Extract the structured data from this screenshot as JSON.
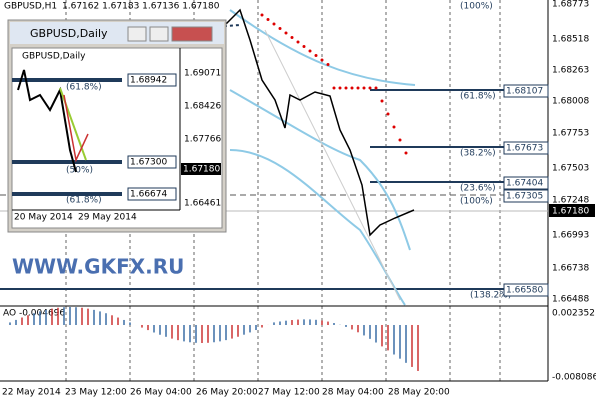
{
  "header": {
    "symbol": "GBPUSD,H1",
    "quote": "1.67162 1.67183 1.67136 1.67180"
  },
  "price_axis": [
    "1.68773",
    "1.68518",
    "1.68263",
    "1.68008",
    "1.67753",
    "1.67503",
    "1.67248",
    "1.66993",
    "1.66738",
    "1.66488"
  ],
  "current_price": "1.67180",
  "fib_levels": [
    {
      "percent": "(100%)",
      "price": null
    },
    {
      "percent": "(61.8%)",
      "price": "1.68107"
    },
    {
      "percent": "(38.2%)",
      "price": "1.67673"
    },
    {
      "percent": "(23.6%)",
      "price": "1.67404"
    },
    {
      "percent": "(100%)",
      "price": "1.67305"
    },
    {
      "percent": "(138.2%)",
      "price": "1.66580"
    }
  ],
  "indicator": {
    "name": "AO -0.004696",
    "axis": [
      "0.002352",
      "-0.008086"
    ]
  },
  "time_axis": [
    "22 May 2014",
    "23 May 12:00",
    "26 May 04:00",
    "26 May 20:00",
    "27 May 12:00",
    "28 May 04:00",
    "28 May 20:00"
  ],
  "watermark": "WWW.GKFX.RU",
  "inset": {
    "title": "GBPUSD,Daily",
    "header": "GBPUSD,Daily",
    "price_axis": [
      "1.69071",
      "1.68426",
      "1.67766",
      "1.66461"
    ],
    "current_price": "1.67180",
    "levels": [
      {
        "percent": "(61.8%)",
        "price": "1.68942"
      },
      {
        "percent": "(50%)",
        "price": "1.67300"
      },
      {
        "percent": "(61.8%)",
        "price": "1.66674"
      }
    ],
    "dates": [
      "20 May 2014",
      "29 May 2014"
    ]
  }
}
